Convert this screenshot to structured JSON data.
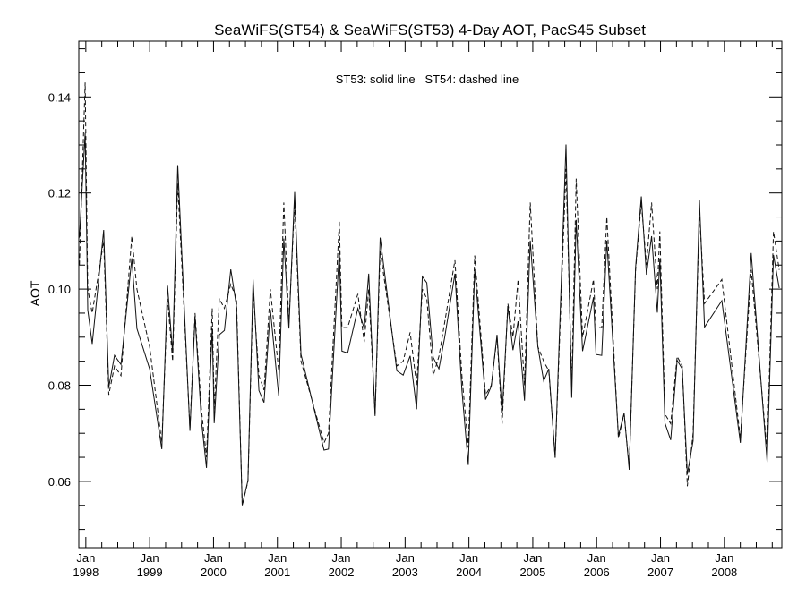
{
  "chart_data": {
    "type": "line",
    "title": "SeaWiFS(ST54) & SeaWiFS(ST53) 4-Day AOT, PacS45 Subset",
    "annotation": "ST53: solid line   ST54: dashed line",
    "xlabel": "",
    "ylabel": "AOT",
    "xlim": [
      1997.89,
      2008.9
    ],
    "ylim": [
      0.0462,
      0.1516
    ],
    "grid": false,
    "yticks": [
      0.06,
      0.08,
      0.1,
      0.12,
      0.14
    ],
    "ytick_labels": [
      "0.06",
      "0.08",
      "0.10",
      "0.12",
      "0.14"
    ],
    "xticks": [
      1998,
      1999,
      2000,
      2001,
      2002,
      2003,
      2004,
      2005,
      2006,
      2007,
      2008
    ],
    "xtick_labels": [
      {
        "month": "Jan",
        "year": "1998"
      },
      {
        "month": "Jan",
        "year": "1999"
      },
      {
        "month": "Jan",
        "year": "2000"
      },
      {
        "month": "Jan",
        "year": "2001"
      },
      {
        "month": "Jan",
        "year": "2002"
      },
      {
        "month": "Jan",
        "year": "2003"
      },
      {
        "month": "Jan",
        "year": "2004"
      },
      {
        "month": "Jan",
        "year": "2005"
      },
      {
        "month": "Jan",
        "year": "2006"
      },
      {
        "month": "Jan",
        "year": "2007"
      },
      {
        "month": "Jan",
        "year": "2008"
      }
    ],
    "x": [
      1997.9,
      1997.99,
      1998.03,
      1998.1,
      1998.28,
      1998.36,
      1998.45,
      1998.55,
      1998.72,
      1998.8,
      1999.0,
      1999.19,
      1999.28,
      1999.36,
      1999.44,
      1999.63,
      1999.71,
      1999.81,
      1999.89,
      1999.98,
      2000.01,
      2000.09,
      2000.17,
      2000.27,
      2000.36,
      2000.45,
      2000.54,
      2000.62,
      2000.71,
      2000.79,
      2000.89,
      2001.02,
      2001.1,
      2001.18,
      2001.27,
      2001.37,
      2001.73,
      2001.8,
      2001.97,
      2002.01,
      2002.1,
      2002.26,
      2002.36,
      2002.43,
      2002.53,
      2002.61,
      2002.87,
      2002.97,
      2003.08,
      2003.18,
      2003.27,
      2003.34,
      2003.44,
      2003.53,
      2003.62,
      2003.78,
      2003.89,
      2003.99,
      2004.09,
      2004.26,
      2004.35,
      2004.44,
      2004.52,
      2004.61,
      2004.69,
      2004.77,
      2004.87,
      2004.96,
      2005.08,
      2005.17,
      2005.25,
      2005.35,
      2005.52,
      2005.61,
      2005.68,
      2005.78,
      2005.95,
      2005.99,
      2006.08,
      2006.16,
      2006.34,
      2006.43,
      2006.51,
      2006.61,
      2006.7,
      2006.78,
      2006.86,
      2006.95,
      2006.99,
      2007.07,
      2007.16,
      2007.26,
      2007.34,
      2007.42,
      2007.51,
      2007.61,
      2007.69,
      2007.96,
      2008.25,
      2008.42,
      2008.67,
      2008.77,
      2008.86
    ],
    "series": [
      {
        "name": "ST53",
        "style": "solid",
        "values": [
          0.1107,
          0.1325,
          0.0957,
          0.0886,
          0.1123,
          0.0796,
          0.0862,
          0.0843,
          0.1064,
          0.0918,
          0.0834,
          0.0667,
          0.1007,
          0.0867,
          0.1258,
          0.0705,
          0.0942,
          0.0727,
          0.0628,
          0.092,
          0.0721,
          0.0905,
          0.0914,
          0.1041,
          0.0964,
          0.055,
          0.0602,
          0.102,
          0.0789,
          0.0764,
          0.0957,
          0.0778,
          0.1105,
          0.0918,
          0.1202,
          0.0864,
          0.0665,
          0.0667,
          0.1082,
          0.0871,
          0.0867,
          0.096,
          0.0918,
          0.1032,
          0.0736,
          0.1107,
          0.083,
          0.0821,
          0.0861,
          0.075,
          0.1026,
          0.1013,
          0.0858,
          0.0834,
          0.0899,
          0.1032,
          0.0789,
          0.0634,
          0.1041,
          0.077,
          0.0798,
          0.0905,
          0.074,
          0.0964,
          0.0873,
          0.0933,
          0.0768,
          0.1101,
          0.088,
          0.0809,
          0.0834,
          0.0649,
          0.1301,
          0.0774,
          0.1144,
          0.0871,
          0.0983,
          0.0864,
          0.0862,
          0.1101,
          0.0695,
          0.0742,
          0.0624,
          0.1045,
          0.1193,
          0.103,
          0.111,
          0.0951,
          0.1064,
          0.0721,
          0.0686,
          0.0852,
          0.0834,
          0.0615,
          0.0684,
          0.1185,
          0.0921,
          0.0976,
          0.068,
          0.1075,
          0.064,
          0.1071,
          0.1002
        ]
      },
      {
        "name": "ST54",
        "style": "dashed",
        "values": [
          0.105,
          0.143,
          0.1,
          0.095,
          0.11,
          0.078,
          0.084,
          0.082,
          0.111,
          0.1,
          0.088,
          0.068,
          0.098,
          0.085,
          0.122,
          0.071,
          0.095,
          0.075,
          0.065,
          0.096,
          0.075,
          0.098,
          0.096,
          0.101,
          0.098,
          0.055,
          0.06,
          0.1,
          0.082,
          0.079,
          0.1,
          0.083,
          0.118,
          0.093,
          0.118,
          0.085,
          0.068,
          0.07,
          0.114,
          0.092,
          0.092,
          0.099,
          0.089,
          0.1,
          0.074,
          0.108,
          0.084,
          0.085,
          0.091,
          0.08,
          0.1,
          0.098,
          0.082,
          0.086,
          0.093,
          0.106,
          0.082,
          0.067,
          0.107,
          0.078,
          0.08,
          0.09,
          0.072,
          0.097,
          0.09,
          0.102,
          0.08,
          0.118,
          0.088,
          0.085,
          0.083,
          0.065,
          0.125,
          0.08,
          0.123,
          0.09,
          0.102,
          0.092,
          0.092,
          0.115,
          0.069,
          0.074,
          0.063,
          0.104,
          0.118,
          0.105,
          0.118,
          0.1,
          0.112,
          0.074,
          0.072,
          0.086,
          0.084,
          0.059,
          0.07,
          0.116,
          0.097,
          0.102,
          0.069,
          0.104,
          0.066,
          0.112,
          0.104
        ]
      }
    ]
  }
}
